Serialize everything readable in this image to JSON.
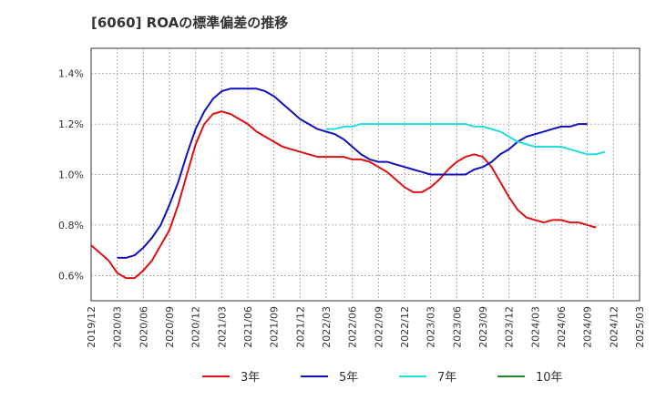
{
  "title": "[6060]  ROAの標準偏差の推移",
  "chart_data": {
    "type": "line",
    "title": "[6060]  ROAの標準偏差の推移",
    "xlabel": "",
    "ylabel": "",
    "ylim": [
      0.5,
      1.5
    ],
    "yticks": [
      "0.6%",
      "0.8%",
      "1.0%",
      "1.2%",
      "1.4%"
    ],
    "ytick_values": [
      0.6,
      0.8,
      1.0,
      1.2,
      1.4
    ],
    "xticks": [
      "2019/12",
      "2020/03",
      "2020/06",
      "2020/09",
      "2020/12",
      "2021/03",
      "2021/06",
      "2021/09",
      "2021/12",
      "2022/03",
      "2022/06",
      "2022/09",
      "2022/12",
      "2023/03",
      "2023/06",
      "2023/09",
      "2023/12",
      "2024/03",
      "2024/06",
      "2024/09",
      "2024/12",
      "2025/03"
    ],
    "grid": true,
    "legend_position": "bottom",
    "series": [
      {
        "name": "3年",
        "color": "#dd1111",
        "start": "2019/12",
        "values": [
          0.72,
          0.69,
          0.66,
          0.61,
          0.59,
          0.59,
          0.62,
          0.66,
          0.72,
          0.78,
          0.88,
          1.0,
          1.12,
          1.2,
          1.24,
          1.25,
          1.24,
          1.22,
          1.2,
          1.17,
          1.15,
          1.13,
          1.11,
          1.1,
          1.09,
          1.08,
          1.07,
          1.07,
          1.07,
          1.07,
          1.06,
          1.06,
          1.05,
          1.03,
          1.01,
          0.98,
          0.95,
          0.93,
          0.93,
          0.95,
          0.98,
          1.02,
          1.05,
          1.07,
          1.08,
          1.07,
          1.03,
          0.97,
          0.91,
          0.86,
          0.83,
          0.82,
          0.81,
          0.82,
          0.82,
          0.81,
          0.81,
          0.8,
          0.79
        ]
      },
      {
        "name": "5年",
        "color": "#1111bb",
        "start": "2020/03",
        "values": [
          0.67,
          0.67,
          0.68,
          0.71,
          0.75,
          0.8,
          0.88,
          0.97,
          1.08,
          1.18,
          1.25,
          1.3,
          1.33,
          1.34,
          1.34,
          1.34,
          1.34,
          1.33,
          1.31,
          1.28,
          1.25,
          1.22,
          1.2,
          1.18,
          1.17,
          1.16,
          1.14,
          1.11,
          1.08,
          1.06,
          1.05,
          1.05,
          1.04,
          1.03,
          1.02,
          1.01,
          1.0,
          1.0,
          1.0,
          1.0,
          1.0,
          1.02,
          1.03,
          1.05,
          1.08,
          1.1,
          1.13,
          1.15,
          1.16,
          1.17,
          1.18,
          1.19,
          1.19,
          1.2,
          1.2
        ]
      },
      {
        "name": "7年",
        "color": "#22dddd",
        "start": "2022/03",
        "values": [
          1.18,
          1.18,
          1.19,
          1.19,
          1.2,
          1.2,
          1.2,
          1.2,
          1.2,
          1.2,
          1.2,
          1.2,
          1.2,
          1.2,
          1.2,
          1.2,
          1.2,
          1.19,
          1.19,
          1.18,
          1.17,
          1.15,
          1.13,
          1.12,
          1.11,
          1.11,
          1.11,
          1.11,
          1.1,
          1.09,
          1.08,
          1.08,
          1.09
        ]
      },
      {
        "name": "10年",
        "color": "#228822",
        "start": "",
        "values": []
      }
    ]
  }
}
